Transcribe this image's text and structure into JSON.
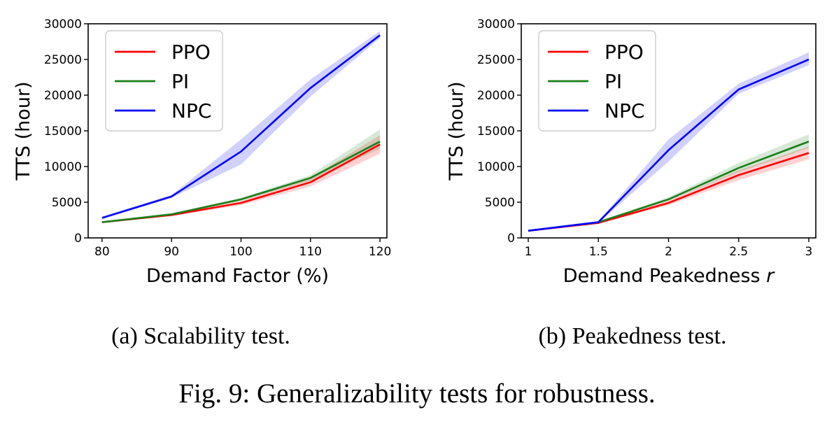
{
  "figure_caption": "Fig. 9: Generalizability tests for robustness.",
  "chart_data": [
    {
      "type": "line",
      "caption": "(a) Scalability test.",
      "xlabel": "Demand Factor (%)",
      "ylabel": "TTS (hour)",
      "x": [
        80,
        90,
        100,
        110,
        120
      ],
      "xticks": [
        80,
        90,
        100,
        110,
        120
      ],
      "xlim": [
        78,
        121
      ],
      "ylim": [
        0,
        30000
      ],
      "yticks": [
        0,
        5000,
        10000,
        15000,
        20000,
        25000,
        30000
      ],
      "legend_position": "top-left",
      "grid": false,
      "series": [
        {
          "name": "PPO",
          "color": "#ff0000",
          "values": [
            2200,
            3200,
            4900,
            7800,
            13100
          ],
          "lower": [
            2100,
            3100,
            4600,
            7200,
            11800
          ],
          "upper": [
            2300,
            3300,
            5200,
            8400,
            14400
          ]
        },
        {
          "name": "PI",
          "color": "#1a7f1a",
          "values": [
            2200,
            3300,
            5400,
            8400,
            13500
          ],
          "lower": [
            2100,
            3150,
            5200,
            8000,
            12500
          ],
          "upper": [
            2300,
            3450,
            5600,
            8800,
            15200
          ]
        },
        {
          "name": "NPC",
          "color": "#0000ff",
          "values": [
            2800,
            5800,
            12100,
            21000,
            28400
          ],
          "lower": [
            2600,
            5600,
            10300,
            19800,
            28000
          ],
          "upper": [
            3000,
            6000,
            13800,
            22200,
            29000
          ]
        }
      ]
    },
    {
      "type": "line",
      "caption": "(b) Peakedness test.",
      "xlabel": "Demand Peakedness r",
      "ylabel": "TTS (hour)",
      "x": [
        1,
        1.5,
        2,
        2.5,
        3
      ],
      "xticks": [
        1,
        1.5,
        2,
        2.5,
        3
      ],
      "xtick_labels": [
        "1",
        "1.5",
        "2",
        "2.5",
        "3"
      ],
      "xlim": [
        0.95,
        3.05
      ],
      "ylim": [
        0,
        30000
      ],
      "yticks": [
        0,
        5000,
        10000,
        15000,
        20000,
        25000,
        30000
      ],
      "legend_position": "top-left",
      "grid": false,
      "series": [
        {
          "name": "PPO",
          "color": "#ff0000",
          "values": [
            1000,
            2100,
            4900,
            8800,
            11900
          ],
          "lower": [
            950,
            2000,
            4600,
            8100,
            11000
          ],
          "upper": [
            1050,
            2200,
            5200,
            9500,
            12800
          ]
        },
        {
          "name": "PI",
          "color": "#1a7f1a",
          "values": [
            1000,
            2200,
            5400,
            9800,
            13500
          ],
          "lower": [
            950,
            2100,
            5200,
            9200,
            12600
          ],
          "upper": [
            1050,
            2300,
            5700,
            10500,
            14500
          ]
        },
        {
          "name": "NPC",
          "color": "#0000ff",
          "values": [
            1000,
            2200,
            12300,
            20800,
            25000
          ],
          "lower": [
            950,
            2100,
            10700,
            20200,
            24200
          ],
          "upper": [
            1050,
            2300,
            13800,
            21600,
            26000
          ]
        }
      ]
    }
  ]
}
